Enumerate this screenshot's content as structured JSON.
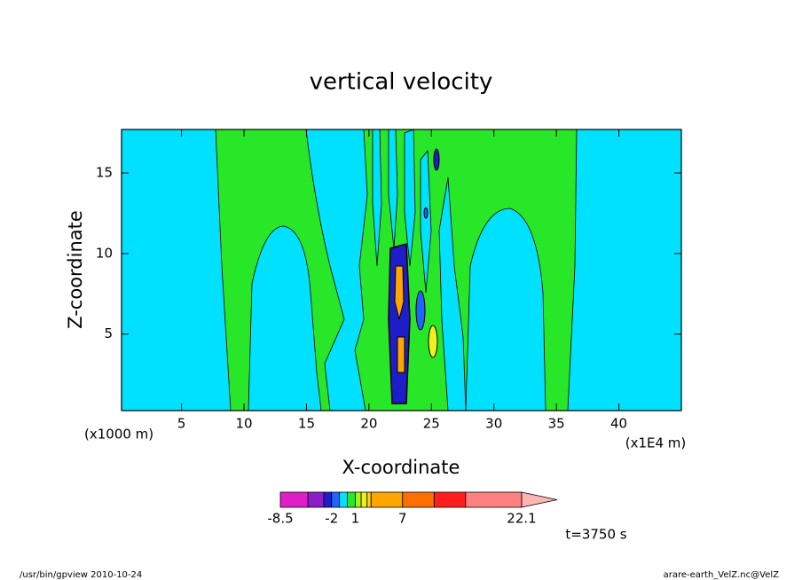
{
  "chart_data": {
    "type": "contour",
    "title": "vertical velocity",
    "xlabel": "X-coordinate",
    "ylabel": "Z-coordinate",
    "x_unit_left": "(x1000 m)",
    "x_unit_right": "(x1E4 m)",
    "time_label": "t=3750 s",
    "footer_left": "/usr/bin/gpview   2010-10-24",
    "footer_right": "arare-earth_VelZ.nc@VelZ",
    "xlim": [
      0.2,
      45
    ],
    "ylim": [
      0.25,
      17.7
    ],
    "xticks": [
      5,
      10,
      15,
      20,
      25,
      30,
      35,
      40
    ],
    "yticks": [
      5,
      10,
      15
    ],
    "colorbar": {
      "levels": [
        -8.5,
        -5,
        -3,
        -2,
        -1,
        0,
        1,
        1.75,
        2.5,
        3,
        7,
        11,
        15,
        22.1
      ],
      "colors": [
        "#e01ec8",
        "#8c1ec8",
        "#1e1ec8",
        "#1e64ff",
        "#00e1ff",
        "#28e628",
        "#aaf01e",
        "#f0f01e",
        "#ffd21e",
        "#ffa500",
        "#ff6e00",
        "#ff1e1e",
        "#ff8080"
      ],
      "extend_color": "#ffb4b4",
      "ticks": [
        -8.5,
        -2,
        1,
        7,
        22.1
      ]
    }
  }
}
